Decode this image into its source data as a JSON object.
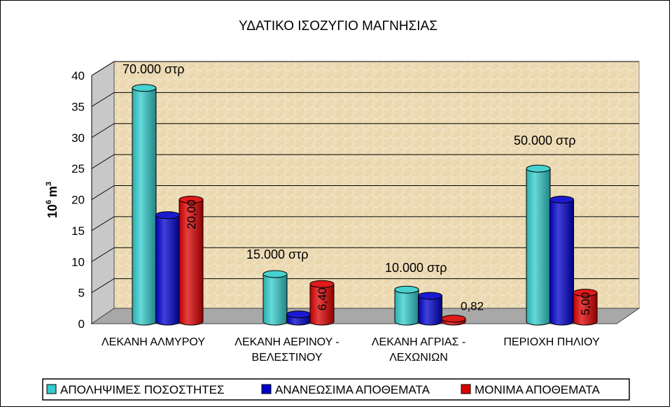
{
  "chart_data": {
    "type": "bar",
    "title": "ΥΔΑΤΙΚΟ ΙΣΟΖΥΓΙΟ ΜΑΓΝΗΣΙΑΣ",
    "ylabel_base": "10",
    "ylabel_exp": "6",
    "ylabel_unit": "m",
    "ylabel_unit_exp": "3",
    "ylim": [
      0,
      40
    ],
    "yticks": [
      "0",
      "5",
      "10",
      "15",
      "20",
      "25",
      "30",
      "35",
      "40"
    ],
    "grid": true,
    "legend_position": "bottom",
    "categories": [
      {
        "line1": "ΛΕΚΑΝΗ ΑΛΜΥΡΟΥ",
        "line2": "",
        "area": "70.000 στρ"
      },
      {
        "line1": "ΛΕΚΑΝΗ ΑΕΡΙΝΟΥ -",
        "line2": "ΒΕΛΕΣΤΙΝΟΥ",
        "area": "15.000 στρ"
      },
      {
        "line1": "ΛΕΚΑΝΗ ΑΓΡΙΑΣ -",
        "line2": "ΛΕΧΩΝΙΩΝ",
        "area": "10.000 στρ"
      },
      {
        "line1": "ΠΕΡΙΟΧΗ ΠΗΛΙΟΥ",
        "line2": "",
        "area": "50.000 στρ"
      }
    ],
    "series": [
      {
        "name": "ΑΠΟΛΗΨΙΜΕΣ ΠΟΣΟΣΤΗΤΕΣ",
        "color": "#33CCCC",
        "values": [
          38,
          8,
          5.5,
          25
        ]
      },
      {
        "name": "ΑΝΑΝΕΩΣΙΜΑ ΑΠΟΘΕΜΑΤΑ",
        "color": "#0000CC",
        "values": [
          17.5,
          1.5,
          4.5,
          20
        ]
      },
      {
        "name": "ΜΟΝΙΜΑ ΑΠΟΘΕΜΑΤΑ",
        "color": "#DD0000",
        "values": [
          20,
          6.4,
          0.82,
          5
        ]
      }
    ],
    "data_labels": [
      {
        "series": 2,
        "category": 0,
        "text": "20,00",
        "rotated": true
      },
      {
        "series": 2,
        "category": 1,
        "text": "6,40",
        "rotated": true
      },
      {
        "series": 2,
        "category": 2,
        "text": "0,82",
        "rotated": false
      },
      {
        "series": 2,
        "category": 3,
        "text": "5,00",
        "rotated": true
      }
    ]
  }
}
